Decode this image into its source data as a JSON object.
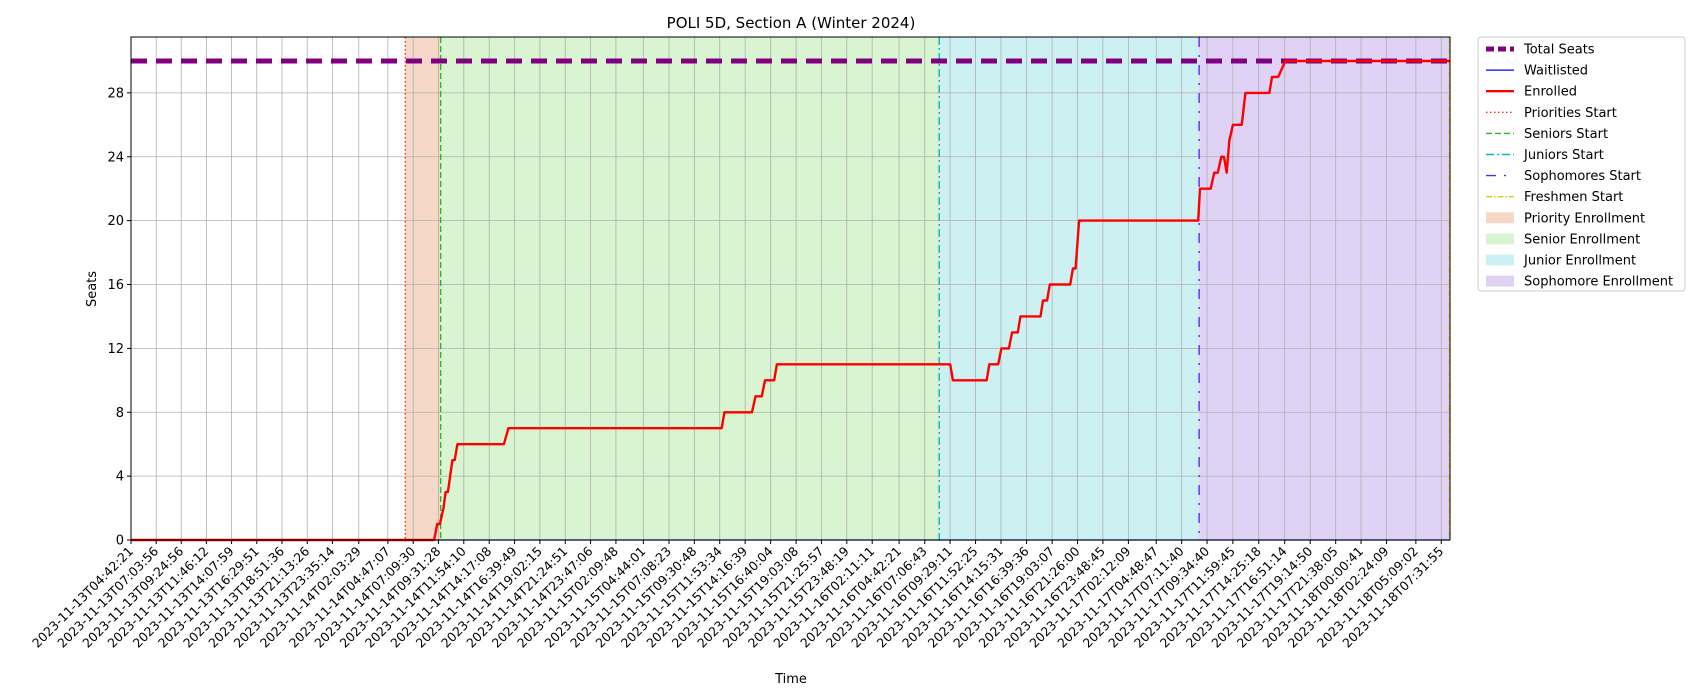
{
  "chart_data": {
    "type": "line",
    "title": "POLI 5D, Section A (Winter 2024)",
    "xlabel": "Time",
    "ylabel": "Seats",
    "ylim": [
      0,
      31.5
    ],
    "yticks": [
      0,
      4,
      8,
      12,
      16,
      20,
      24,
      28
    ],
    "grid": true,
    "legend_position": "outside-right",
    "x_start": "2023-11-13T04:42:21",
    "x_end": "2023-11-18T08:21:03",
    "xticks": [
      "2023-11-13T04:42:21",
      "2023-11-13T07:03:56",
      "2023-11-13T09:24:56",
      "2023-11-13T11:46:12",
      "2023-11-13T14:07:59",
      "2023-11-13T16:29:51",
      "2023-11-13T18:51:36",
      "2023-11-13T21:13:26",
      "2023-11-13T23:35:14",
      "2023-11-14T02:03:29",
      "2023-11-14T04:47:07",
      "2023-11-14T07:09:30",
      "2023-11-14T09:31:28",
      "2023-11-14T11:54:10",
      "2023-11-14T14:17:08",
      "2023-11-14T16:39:49",
      "2023-11-14T19:02:15",
      "2023-11-14T21:24:51",
      "2023-11-14T23:47:06",
      "2023-11-15T02:09:48",
      "2023-11-15T04:44:01",
      "2023-11-15T07:08:23",
      "2023-11-15T09:30:48",
      "2023-11-15T11:53:34",
      "2023-11-15T14:16:39",
      "2023-11-15T16:40:04",
      "2023-11-15T19:03:08",
      "2023-11-15T21:25:57",
      "2023-11-15T23:48:19",
      "2023-11-16T02:11:11",
      "2023-11-16T04:42:21",
      "2023-11-16T07:06:43",
      "2023-11-16T09:29:11",
      "2023-11-16T11:52:25",
      "2023-11-16T14:15:31",
      "2023-11-16T16:39:36",
      "2023-11-16T19:03:07",
      "2023-11-16T21:26:00",
      "2023-11-16T23:48:45",
      "2023-11-17T02:12:09",
      "2023-11-17T04:48:47",
      "2023-11-17T07:11:40",
      "2023-11-17T09:34:40",
      "2023-11-17T11:59:45",
      "2023-11-17T14:25:18",
      "2023-11-17T16:51:14",
      "2023-11-17T19:14:50",
      "2023-11-17T21:38:05",
      "2023-11-18T00:00:41",
      "2023-11-18T02:24:09",
      "2023-11-18T05:09:02",
      "2023-11-18T07:31:55"
    ],
    "series": [
      {
        "name": "Total Seats",
        "color": "#800080",
        "style": "dashed-thick",
        "points": [
          [
            "2023-11-13T04:42:21",
            30
          ],
          [
            "2023-11-18T08:21:03",
            30
          ]
        ]
      },
      {
        "name": "Waitlisted",
        "color": "#0000ff",
        "style": "solid",
        "points": [
          [
            "2023-11-13T04:42:21",
            0
          ],
          [
            "2023-11-18T08:21:03",
            0
          ]
        ]
      },
      {
        "name": "Enrolled",
        "color": "#ff0000",
        "style": "solid-thick",
        "points": [
          [
            "2023-11-13T04:42:21",
            0
          ],
          [
            "2023-11-14T09:07:00",
            0
          ],
          [
            "2023-11-14T09:25:00",
            1
          ],
          [
            "2023-11-14T09:40:00",
            1
          ],
          [
            "2023-11-14T10:00:00",
            2
          ],
          [
            "2023-11-14T10:12:00",
            3
          ],
          [
            "2023-11-14T10:25:00",
            3
          ],
          [
            "2023-11-14T10:50:00",
            5
          ],
          [
            "2023-11-14T11:03:00",
            5
          ],
          [
            "2023-11-14T11:18:00",
            6
          ],
          [
            "2023-11-14T15:40:00",
            6
          ],
          [
            "2023-11-14T16:05:00",
            7
          ],
          [
            "2023-11-15T12:05:00",
            7
          ],
          [
            "2023-11-15T12:20:00",
            8
          ],
          [
            "2023-11-15T14:55:00",
            8
          ],
          [
            "2023-11-15T15:15:00",
            9
          ],
          [
            "2023-11-15T15:50:00",
            9
          ],
          [
            "2023-11-15T16:08:00",
            10
          ],
          [
            "2023-11-15T17:00:00",
            10
          ],
          [
            "2023-11-15T17:15:00",
            11
          ],
          [
            "2023-11-16T09:30:00",
            11
          ],
          [
            "2023-11-16T09:45:00",
            10
          ],
          [
            "2023-11-16T12:55:00",
            10
          ],
          [
            "2023-11-16T13:10:00",
            11
          ],
          [
            "2023-11-16T14:00:00",
            11
          ],
          [
            "2023-11-16T14:18:00",
            12
          ],
          [
            "2023-11-16T15:00:00",
            12
          ],
          [
            "2023-11-16T15:18:00",
            13
          ],
          [
            "2023-11-16T15:50:00",
            13
          ],
          [
            "2023-11-16T16:05:00",
            14
          ],
          [
            "2023-11-16T17:58:00",
            14
          ],
          [
            "2023-11-16T18:12:00",
            15
          ],
          [
            "2023-11-16T18:35:00",
            15
          ],
          [
            "2023-11-16T18:50:00",
            16
          ],
          [
            "2023-11-16T20:45:00",
            16
          ],
          [
            "2023-11-16T21:00:00",
            17
          ],
          [
            "2023-11-16T21:15:00",
            17
          ],
          [
            "2023-11-16T21:35:00",
            20
          ],
          [
            "2023-11-17T08:45:00",
            20
          ],
          [
            "2023-11-17T08:55:00",
            22
          ],
          [
            "2023-11-17T09:55:00",
            22
          ],
          [
            "2023-11-17T10:15:00",
            23
          ],
          [
            "2023-11-17T10:35:00",
            23
          ],
          [
            "2023-11-17T10:55:00",
            24
          ],
          [
            "2023-11-17T11:10:00",
            24
          ],
          [
            "2023-11-17T11:25:00",
            23
          ],
          [
            "2023-11-17T11:40:00",
            25
          ],
          [
            "2023-11-17T12:00:00",
            26
          ],
          [
            "2023-11-17T12:50:00",
            26
          ],
          [
            "2023-11-17T13:10:00",
            28
          ],
          [
            "2023-11-17T15:25:00",
            28
          ],
          [
            "2023-11-17T15:40:00",
            29
          ],
          [
            "2023-11-17T16:15:00",
            29
          ],
          [
            "2023-11-17T16:55:00",
            30
          ],
          [
            "2023-11-18T08:21:03",
            30
          ]
        ]
      }
    ],
    "vlines": [
      {
        "name": "Priorities Start",
        "color": "#ff2a00",
        "style": "dotted",
        "at": "2023-11-14T06:25:00"
      },
      {
        "name": "Seniors Start",
        "color": "#22bb22",
        "style": "dashed",
        "at": "2023-11-14T09:44:00"
      },
      {
        "name": "Juniors Start",
        "color": "#00bbbb",
        "style": "dashdot",
        "at": "2023-11-16T08:28:00"
      },
      {
        "name": "Sophomores Start",
        "color": "#6622ff",
        "style": "loosedashdot",
        "at": "2023-11-17T08:50:00"
      },
      {
        "name": "Freshmen Start",
        "color": "#ddcc00",
        "style": "dashdot-thin",
        "at": "2023-11-18T08:18:00"
      }
    ],
    "spans": [
      {
        "name": "Priority Enrollment",
        "color": "#f6d8c8",
        "from": "2023-11-14T06:25:00",
        "to": "2023-11-14T09:44:00"
      },
      {
        "name": "Senior Enrollment",
        "color": "#d8f4d0",
        "from": "2023-11-14T09:44:00",
        "to": "2023-11-16T08:28:00"
      },
      {
        "name": "Junior Enrollment",
        "color": "#cdf1f3",
        "from": "2023-11-16T08:28:00",
        "to": "2023-11-17T08:50:00"
      },
      {
        "name": "Sophomore Enrollment",
        "color": "#e0d2f4",
        "from": "2023-11-17T08:50:00",
        "to": "2023-11-18T08:18:00"
      }
    ],
    "legend": [
      "Total Seats",
      "Waitlisted",
      "Enrolled",
      "Priorities Start",
      "Seniors Start",
      "Juniors Start",
      "Sophomores Start",
      "Freshmen Start",
      "Priority Enrollment",
      "Senior Enrollment",
      "Junior Enrollment",
      "Sophomore Enrollment"
    ]
  }
}
